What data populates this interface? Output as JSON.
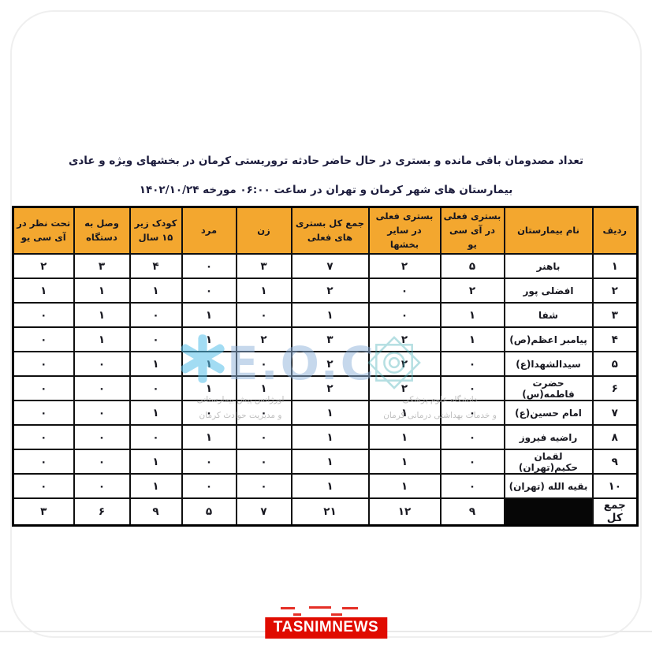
{
  "title": {
    "line1": "تعداد مصدومان باقی مانده و بستری در حال حاضر حادثه تروریستی کرمان در بخشهای ویژه و عادی",
    "line2": "بیمارستان های شهر کرمان و تهران در ساعت ۰۶:۰۰ مورخه ۱۴۰۲/۱۰/۲۴"
  },
  "table": {
    "header_bg": "#F3A72F",
    "border_color": "#0f0f0f",
    "columns": [
      {
        "key": "row",
        "label": "ردیف"
      },
      {
        "key": "name",
        "label": "نام بیمارستان"
      },
      {
        "key": "icu",
        "label": "بستری فعلی در آی سی یو"
      },
      {
        "key": "other_wards",
        "label": "بستری فعلی در سایر بخشها"
      },
      {
        "key": "total",
        "label": "جمع کل بستری های فعلی"
      },
      {
        "key": "female",
        "label": "زن"
      },
      {
        "key": "male",
        "label": "مرد"
      },
      {
        "key": "child_under_15",
        "label": "کودک زیر ۱۵ سال"
      },
      {
        "key": "ventilator",
        "label": "وصل به دستگاه"
      },
      {
        "key": "icu_observation",
        "label": "تحت نظر در آی سی یو"
      }
    ],
    "rows": [
      {
        "row": "۱",
        "name": "باهنر",
        "icu": "۵",
        "other_wards": "۲",
        "total": "۷",
        "female": "۳",
        "male": "۰",
        "child_under_15": "۴",
        "ventilator": "۳",
        "icu_observation": "۲"
      },
      {
        "row": "۲",
        "name": "افضلی پور",
        "icu": "۲",
        "other_wards": "۰",
        "total": "۲",
        "female": "۱",
        "male": "۰",
        "child_under_15": "۱",
        "ventilator": "۱",
        "icu_observation": "۱"
      },
      {
        "row": "۳",
        "name": "شفا",
        "icu": "۱",
        "other_wards": "۰",
        "total": "۱",
        "female": "۰",
        "male": "۱",
        "child_under_15": "۰",
        "ventilator": "۱",
        "icu_observation": "۰"
      },
      {
        "row": "۴",
        "name": "پیامبر اعظم(ص)",
        "icu": "۱",
        "other_wards": "۲",
        "total": "۳",
        "female": "۲",
        "male": "۱",
        "child_under_15": "۰",
        "ventilator": "۱",
        "icu_observation": "۰"
      },
      {
        "row": "۵",
        "name": "سیدالشهدا(ع)",
        "icu": "۰",
        "other_wards": "۲",
        "total": "۲",
        "female": "۰",
        "male": "۱",
        "child_under_15": "۱",
        "ventilator": "۰",
        "icu_observation": "۰"
      },
      {
        "row": "۶",
        "name": "حضرت فاطمه(س)",
        "icu": "۰",
        "other_wards": "۲",
        "total": "۲",
        "female": "۱",
        "male": "۱",
        "child_under_15": "۰",
        "ventilator": "۰",
        "icu_observation": "۰"
      },
      {
        "row": "۷",
        "name": "امام حسین(ع)",
        "icu": "۰",
        "other_wards": "۱",
        "total": "۱",
        "female": "۰",
        "male": "۰",
        "child_under_15": "۱",
        "ventilator": "۰",
        "icu_observation": "۰"
      },
      {
        "row": "۸",
        "name": "راضیه فیروز",
        "icu": "۰",
        "other_wards": "۱",
        "total": "۱",
        "female": "۰",
        "male": "۱",
        "child_under_15": "۰",
        "ventilator": "۰",
        "icu_observation": "۰"
      },
      {
        "row": "۹",
        "name": "لقمان حکیم(تهران)",
        "icu": "۰",
        "other_wards": "۱",
        "total": "۱",
        "female": "۰",
        "male": "۰",
        "child_under_15": "۱",
        "ventilator": "۰",
        "icu_observation": "۰"
      },
      {
        "row": "۱۰",
        "name": "بقیه الله (تهران)",
        "icu": "۰",
        "other_wards": "۱",
        "total": "۱",
        "female": "۰",
        "male": "۰",
        "child_under_15": "۱",
        "ventilator": "۰",
        "icu_observation": "۰"
      }
    ],
    "total_row": {
      "row": "جمع کل",
      "name": "",
      "name_redacted": true,
      "icu": "۹",
      "other_wards": "۱۲",
      "total": "۲۱",
      "female": "۷",
      "male": "۵",
      "child_under_15": "۹",
      "ventilator": "۶",
      "icu_observation": "۳"
    }
  },
  "watermark": {
    "eoc": "E.O.C",
    "star_of_life_icon": "star-of-life-icon",
    "university_emblem_icon": "university-emblem-icon",
    "left_line1": "اورژانس پیش بیمارستانی",
    "left_line2": "و مدیریت حوادث کرمان",
    "right_line1": "دانشگاه علوم پزشکی",
    "right_line2": "و خدمات بهداشتی درمانی کرمان",
    "accent_blue": "#8fb3da",
    "accent_teal": "#49b0b8"
  },
  "footer": {
    "brand": "TASNIMNEWS",
    "brand_bg": "#e00b00",
    "brand_text_color": "#ffffff"
  }
}
